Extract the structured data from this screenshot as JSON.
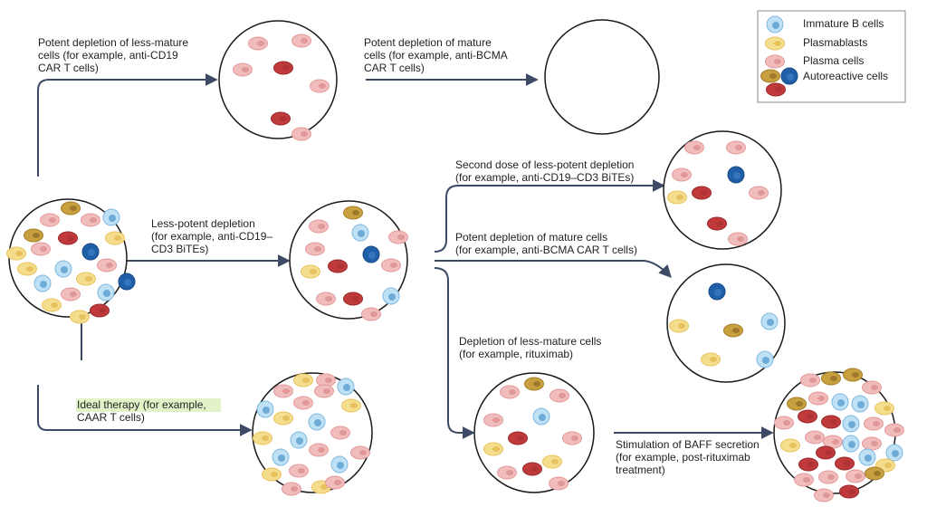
{
  "legend": {
    "items": [
      "Immature B cells",
      "Plasmablasts",
      "Plasma cells",
      "Autoreactive cells"
    ]
  },
  "labels": [
    {
      "lines": [
        "Potent depletion of less-mature",
        "cells (for example, anti-CD19",
        "CAR T cells)"
      ]
    },
    {
      "lines": [
        "Potent depletion of mature",
        "cells (for example, anti-BCMA",
        "CAR T cells)"
      ]
    },
    {
      "lines": [
        "Less-potent depletion",
        "(for example, anti-CD19–",
        "CD3 BiTEs)"
      ]
    },
    {
      "lines": [
        "Second dose of less-potent depletion",
        "(for example, anti-CD19–CD3 BiTEs)"
      ]
    },
    {
      "lines": [
        "Potent depletion of mature cells",
        "(for example, anti-BCMA CAR T cells)"
      ]
    },
    {
      "lines": [
        "Depletion of less-mature cells",
        "(for example, rituximab)"
      ]
    },
    {
      "lines": [
        "Ideal therapy (for example,",
        "CAAR T cells)"
      ]
    },
    {
      "lines": [
        "Stimulation of BAFF secretion",
        "(for example, post-rituximab",
        "treatment)"
      ]
    }
  ]
}
